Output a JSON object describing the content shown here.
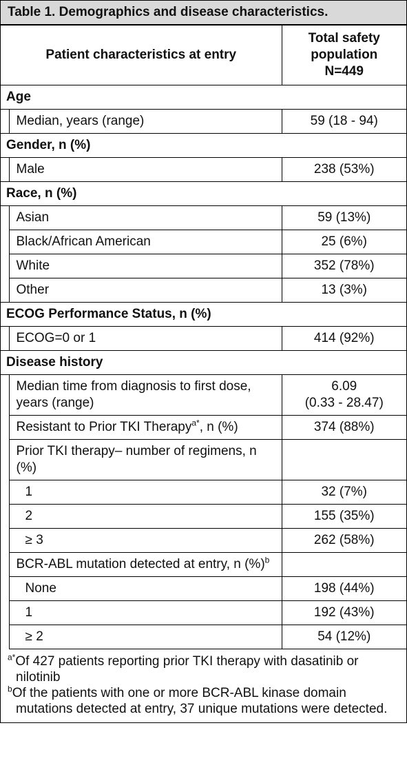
{
  "title": "Table 1. Demographics and disease characteristics.",
  "header": {
    "label": "Patient characteristics at entry",
    "value_lines": [
      "Total safety",
      "population",
      "N=449"
    ]
  },
  "sections": [
    {
      "title": "Age",
      "rows": [
        {
          "label": "Median, years (range)",
          "value": "59 (18 - 94)"
        }
      ]
    },
    {
      "title": "Gender, n (%)",
      "rows": [
        {
          "label": "Male",
          "value": "238 (53%)"
        }
      ]
    },
    {
      "title": "Race, n (%)",
      "rows": [
        {
          "label": "Asian",
          "value": "59 (13%)"
        },
        {
          "label": "Black/African American",
          "value": "25 (6%)"
        },
        {
          "label": "White",
          "value": "352 (78%)"
        },
        {
          "label": "Other",
          "value": "13 (3%)"
        }
      ]
    },
    {
      "title": "ECOG Performance Status, n (%)",
      "rows": [
        {
          "label": "ECOG=0 or 1",
          "value": "414 (92%)"
        }
      ]
    },
    {
      "title": "Disease history",
      "rows": [
        {
          "label": "Median time from diagnosis to first dose, years (range)",
          "value": [
            "6.09",
            "(0.33 - 28.47)"
          ]
        },
        {
          "label": "Resistant to Prior TKI Therapy",
          "sup": "a*",
          "label_after": ", n (%)",
          "value": "374 (88%)"
        },
        {
          "label": "Prior TKI therapy– number of regimens, n (%)",
          "rows": [
            {
              "label": "1",
              "value": "32 (7%)"
            },
            {
              "label": "2",
              "value": "155 (35%)"
            },
            {
              "label": "≥ 3",
              "value": "262 (58%)"
            }
          ]
        },
        {
          "label": "BCR-ABL mutation detected at entry, n (%)",
          "sup": "b",
          "rows": [
            {
              "label": "None",
              "value": "198 (44%)"
            },
            {
              "label": "1",
              "value": "192 (43%)"
            },
            {
              "label": "≥ 2",
              "value": "54 (12%)"
            }
          ]
        }
      ]
    }
  ],
  "footnotes": [
    {
      "mark": "a*",
      "text": "Of 427 patients reporting prior TKI therapy with dasatinib or nilotinib"
    },
    {
      "mark": "b",
      "text": "Of the patients with one or more BCR-ABL kinase domain mutations detected at entry, 37 unique mutations were detected."
    }
  ]
}
